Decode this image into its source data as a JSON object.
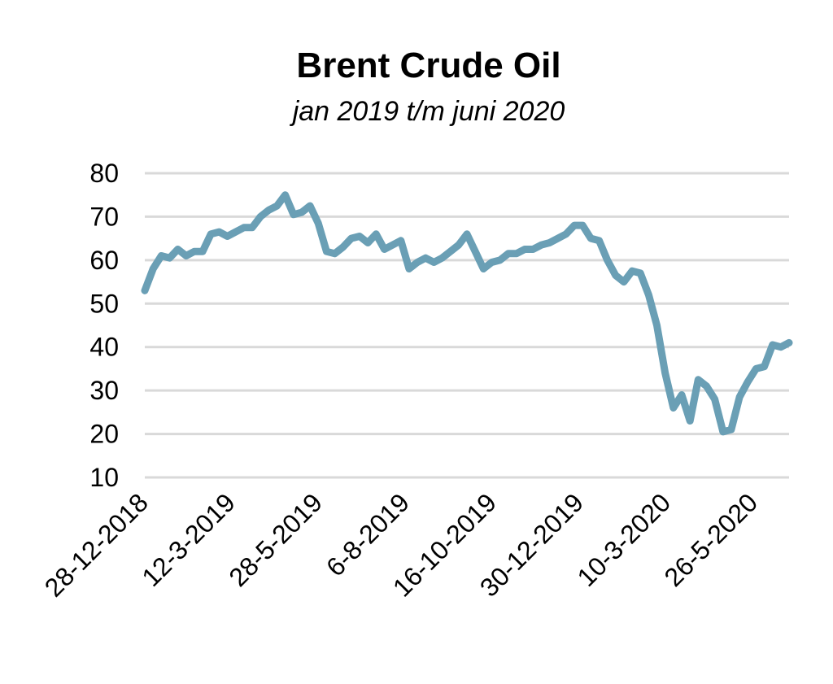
{
  "chart_data": {
    "type": "line",
    "title": "Brent Crude Oil",
    "subtitle": "jan 2019 t/m juni 2020",
    "xlabel": "",
    "ylabel": "",
    "ylim": [
      10,
      80
    ],
    "yticks": [
      80,
      70,
      60,
      50,
      40,
      30,
      20,
      10
    ],
    "xticks": [
      "28-12-2018",
      "12-3-2019",
      "28-5-2019",
      "6-8-2019",
      "16-10-2019",
      "30-12-2019",
      "10-3-2020",
      "26-5-2020"
    ],
    "grid": true,
    "legend": "none",
    "color": "#6a9fb5",
    "x": [
      "2018-12-28",
      "2019-01-04",
      "2019-01-11",
      "2019-01-18",
      "2019-01-25",
      "2019-02-01",
      "2019-02-08",
      "2019-02-15",
      "2019-02-22",
      "2019-03-01",
      "2019-03-08",
      "2019-03-15",
      "2019-03-22",
      "2019-03-29",
      "2019-04-05",
      "2019-04-12",
      "2019-04-19",
      "2019-04-26",
      "2019-05-03",
      "2019-05-10",
      "2019-05-17",
      "2019-05-24",
      "2019-05-31",
      "2019-06-07",
      "2019-06-14",
      "2019-06-21",
      "2019-06-28",
      "2019-07-05",
      "2019-07-12",
      "2019-07-19",
      "2019-07-26",
      "2019-08-02",
      "2019-08-09",
      "2019-08-16",
      "2019-08-23",
      "2019-08-30",
      "2019-09-06",
      "2019-09-13",
      "2019-09-20",
      "2019-09-27",
      "2019-10-04",
      "2019-10-11",
      "2019-10-18",
      "2019-10-25",
      "2019-11-01",
      "2019-11-08",
      "2019-11-15",
      "2019-11-22",
      "2019-11-29",
      "2019-12-06",
      "2019-12-13",
      "2019-12-20",
      "2019-12-27",
      "2020-01-03",
      "2020-01-10",
      "2020-01-17",
      "2020-01-24",
      "2020-01-31",
      "2020-02-07",
      "2020-02-14",
      "2020-02-21",
      "2020-02-28",
      "2020-03-06",
      "2020-03-13",
      "2020-03-20",
      "2020-03-27",
      "2020-04-03",
      "2020-04-10",
      "2020-04-17",
      "2020-04-24",
      "2020-05-01",
      "2020-05-08",
      "2020-05-15",
      "2020-05-22",
      "2020-05-29",
      "2020-06-05",
      "2020-06-12",
      "2020-06-19",
      "2020-06-26"
    ],
    "series": [
      {
        "values": [
          53.0,
          58.0,
          61.0,
          60.5,
          62.5,
          61.0,
          62.0,
          62.0,
          66.0,
          66.5,
          65.5,
          66.5,
          67.5,
          67.5,
          70.0,
          71.5,
          72.5,
          75.0,
          70.5,
          71.0,
          72.5,
          68.5,
          62.0,
          61.5,
          63.0,
          65.0,
          65.5,
          64.0,
          66.0,
          62.5,
          63.5,
          64.5,
          58.0,
          59.5,
          60.5,
          59.5,
          60.5,
          62.0,
          63.5,
          66.0,
          62.0,
          58.0,
          59.5,
          60.0,
          61.5,
          61.5,
          62.5,
          62.5,
          63.5,
          64.0,
          65.0,
          66.0,
          68.0,
          68.0,
          65.0,
          64.5,
          60.0,
          56.5,
          55.0,
          57.5,
          57.0,
          52.0,
          45.0,
          34.0,
          26.0,
          29.0,
          23.0,
          32.5,
          31.0,
          28.0,
          20.5,
          21.0,
          28.5,
          32.0,
          35.0,
          35.5,
          40.5,
          40.0,
          41.0
        ]
      }
    ]
  }
}
